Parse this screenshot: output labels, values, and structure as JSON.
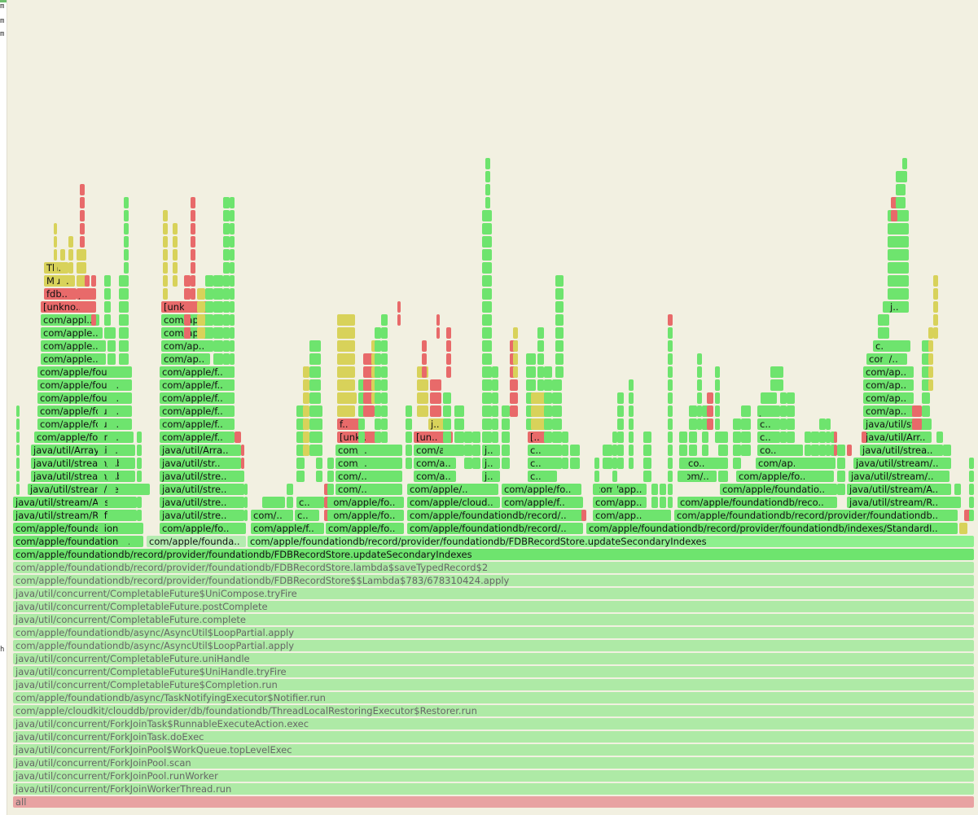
{
  "window": {
    "left_strip_glyphs": [
      "m",
      "m",
      "m",
      "h"
    ]
  },
  "colors": {
    "green": "#6ee46e",
    "green_light": "#8ef08e",
    "green_pale": "#b4ecb0",
    "green_faded": "#aeeaa6",
    "red": "#e86a6a",
    "yellow": "#d8d25a",
    "root": "#e8a2a2"
  },
  "labels": {
    "all": "all",
    "forkjoin_run": "java/util/concurrent/ForkJoinWorkerThread.run",
    "run_worker": "java/util/concurrent/ForkJoinPool.runWorker",
    "scan": "java/util/concurrent/ForkJoinPool.scan",
    "top_level_exec": "java/util/concurrent/ForkJoinPool$WorkQueue.topLevelExec",
    "do_exec": "java/util/concurrent/ForkJoinTask.doExec",
    "runnable_exec": "java/util/concurrent/ForkJoinTask$RunnableExecuteAction.exec",
    "restorer_run": "com/apple/cloudkit/clouddb/provider/db/foundationdb/ThreadLocalRestoringExecutor$Restorer.run",
    "notifier_run": "com/apple/foundationdb/async/TaskNotifyingExecutor$Notifier.run",
    "completion_run": "java/util/concurrent/CompletableFuture$Completion.run",
    "unihandle_tryfire": "java/util/concurrent/CompletableFuture$UniHandle.tryFire",
    "unihandle": "java/util/concurrent/CompletableFuture.uniHandle",
    "loop_partial_1": "com/apple/foundationdb/async/AsyncUtil$LoopPartial.apply",
    "loop_partial_2": "com/apple/foundationdb/async/AsyncUtil$LoopPartial.apply",
    "cf_complete": "java/util/concurrent/CompletableFuture.complete",
    "cf_post_complete": "java/util/concurrent/CompletableFuture.postComplete",
    "unicompose_tryfire": "java/util/concurrent/CompletableFuture$UniCompose.tryFire",
    "lambda_apply": "com/apple/foundationdb/record/provider/foundationdb/FDBRecordStore$$Lambda$783/678310424.apply",
    "save_typed_record": "com/apple/foundationdb/record/provider/foundationdb/FDBRecordStore.lambda$saveTypedRecord$2",
    "update_secondary_1": "com/apple/foundationdb/record/provider/foundationdb/FDBRecordStore.updateSecondaryIndexes",
    "update_secondary_2": "com/apple/foundationdb/record/provider/foundationdb/FDBRecordStore.updateSecondaryIndexes",
    "com_apple_foundation_a": "com/apple/foundationd..",
    "com_apple_founda": "com/apple/founda..",
    "standard_update": "com/apple/foundationdb/record/provider/foundationdb/indexes/StandardIndexMaintainer.update",
    "com_apple_foundation_b": "com/apple/foundation..",
    "com_apple_fo": "com/apple/fo..",
    "com_apple_f": "com/apple/f..",
    "com_apple_fo2": "com/apple/fo..",
    "com_apple_foundationdb_record": "com/apple/foundationdb/record/..",
    "standard_i": "com/apple/foundationdb/record/provider/foundationdb/indexes/StandardI..",
    "java_stream_ref": "java/util/stream/Ref..",
    "java_util_stre_1": "java/util/stre..",
    "com_slash": "com/..",
    "c_dots": "c..",
    "com_apple_fo3": "com/apple/fo..",
    "com_apple_foundationdb_record2": "com/apple/foundationdb/record/..",
    "com_app_dots": "com/app..",
    "provider_foundationdb": "com/apple/foundationdb/record/provider/foundationdb..",
    "java_stream_abs": "java/util/stream/Abs..",
    "java_util_stre_2": "java/util/stre..",
    "com_apple_fo4": "com/apple/fo..",
    "com_apple_cloud": "com/apple/cloud..",
    "com_apple_f2": "com/apple/f..",
    "com_app_2": "com/app..",
    "com_apple_foundationdb_reco": "com/apple/foundationdb/reco..",
    "java_stream_r": "java/util/stream/R..",
    "java_stream_re": "java/util/stream/Re..",
    "java_util_stre_3": "java/util/stre..",
    "com_apple2": "com/apple/..",
    "com_app_3": "com/app..",
    "com_apple_foundatio": "com/apple/foundatio..",
    "java_stream_a": "java/util/stream/A..",
    "java_stream_ab": "java/util/stream/Ab..",
    "java_util_stre_4": "java/util/stre..",
    "com_slash2": "com/..",
    "com_apple_fo5": "com/apple/fo..",
    "com_apple_fo6": "com/apple/fo..",
    "java_util_stream_2": "java/util/stream/..",
    "java_stream_ab2": "java/util/stream/Ab..",
    "java_util_str_1": "java/util/str..",
    "com_a": "com/a..",
    "c_dots2": "c..",
    "co_dots": "co..",
    "com_ap": "com/ap..",
    "java_stream_3": "java/util/stream..",
    "java_arraylis": "java/util/ArrayLis..",
    "java_util_arra": "java/util/Arra..",
    "com_slash3": "com/..",
    "j_dots": "j..",
    "c_dots3": "c..",
    "co_dots2": "co..",
    "java_util_arr": "java/util/Arr..",
    "java_util_stream_4": "java/util/stream/..",
    "java_util_str_2": "java/util/str..",
    "com_slash4": "com/..",
    "com_a2": "com/a..",
    "j_dots2": "j..",
    "c_dots4": "c..",
    "java_util_strea": "java/util/strea..",
    "com_apple_found": "com/apple/found..",
    "com_apple_f3": "com/apple/f..",
    "unkn": "[unk..",
    "un": "[un..",
    "br": "[..",
    "c_dots5": "c..",
    "java_util_str_3": "java/util/str..",
    "com_apple_foun_1": "com/apple/foun..",
    "com_apple_f4": "com/apple/f..",
    "f_dots": "f..",
    "j_dots3": "j..",
    "ja_dots": "ja..",
    "c_dots6": "c..",
    "com_ap2": "com/ap..",
    "com_apple_foun_2": "com/apple/foun..",
    "com_apple_f5": "com/apple/f..",
    "com_ap3": "com/ap..",
    "com_apple_foun_3": "com/apple/foun..",
    "com_apple_f6": "com/apple/f..",
    "T_dots": "T..",
    "com_ap4": "com/ap..",
    "com_apple_foun_4": "com/apple/foun..",
    "com_apple_f7": "com/apple/f..",
    "com_ap5": "com/ap..",
    "com_apple_fou": "com/apple/fou..",
    "com_apple_f8": "com/apple/f..",
    "com_ap6": "com/ap..",
    "com_apple_1": "com/apple..",
    "com_ap7": "com/ap..",
    "com_slash5": "com/..",
    "com_apple_2": "com/apple..",
    "com_ap8": "com/ap..",
    "c_dots7": "c..",
    "com_apple_3": "com/apple..",
    "com_ap9": "com/ap..",
    "com_appl": "com/appl..",
    "com_a3": "com/a..",
    "unkno": "[unkno..",
    "unkn2": "[unkn..",
    "j_dots4": "j..",
    "fdb": "fdb..",
    "j_dots5": "j..",
    "mul": "Mul..",
    "th": "Th.."
  }
}
